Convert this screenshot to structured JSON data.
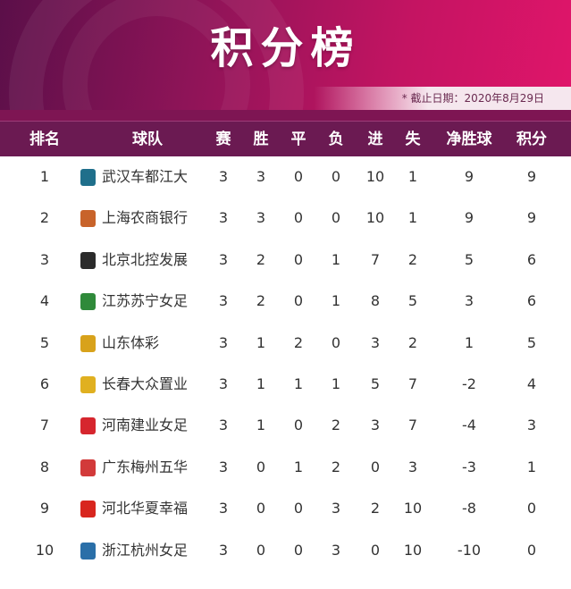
{
  "title": "积分榜",
  "date_note": "* 截止日期：2020年8月29日",
  "colors": {
    "banner_dark": "#5b0f49",
    "banner_bright": "#e0156a",
    "header_bg": "#6b1a52"
  },
  "headers": {
    "rank": "排名",
    "team": "球队",
    "played": "赛",
    "won": "胜",
    "drawn": "平",
    "lost": "负",
    "goals_for": "进",
    "goals_against": "失",
    "goal_diff": "净胜球",
    "points": "积分"
  },
  "rows": [
    {
      "rank": "1",
      "team": "武汉车都江大",
      "badge": "wuhan-badge-icon",
      "badge_color": "#1f6f8b",
      "played": "3",
      "won": "3",
      "drawn": "0",
      "lost": "0",
      "goals_for": "10",
      "goals_against": "1",
      "goal_diff": "9",
      "points": "9"
    },
    {
      "rank": "2",
      "team": "上海农商银行",
      "badge": "shanghai-badge-icon",
      "badge_color": "#c8632a",
      "played": "3",
      "won": "3",
      "drawn": "0",
      "lost": "0",
      "goals_for": "10",
      "goals_against": "1",
      "goal_diff": "9",
      "points": "9"
    },
    {
      "rank": "3",
      "team": "北京北控发展",
      "badge": "beijing-badge-icon",
      "badge_color": "#2b2b2b",
      "played": "3",
      "won": "2",
      "drawn": "0",
      "lost": "1",
      "goals_for": "7",
      "goals_against": "2",
      "goal_diff": "5",
      "points": "6"
    },
    {
      "rank": "4",
      "team": "江苏苏宁女足",
      "badge": "jiangsu-badge-icon",
      "badge_color": "#2f8a3a",
      "played": "3",
      "won": "2",
      "drawn": "0",
      "lost": "1",
      "goals_for": "8",
      "goals_against": "5",
      "goal_diff": "3",
      "points": "6"
    },
    {
      "rank": "5",
      "team": "山东体彩",
      "badge": "shandong-badge-icon",
      "badge_color": "#d8a21b",
      "played": "3",
      "won": "1",
      "drawn": "2",
      "lost": "0",
      "goals_for": "3",
      "goals_against": "2",
      "goal_diff": "1",
      "points": "5"
    },
    {
      "rank": "6",
      "team": "长春大众置业",
      "badge": "changchun-badge-icon",
      "badge_color": "#e0b020",
      "played": "3",
      "won": "1",
      "drawn": "1",
      "lost": "1",
      "goals_for": "5",
      "goals_against": "7",
      "goal_diff": "-2",
      "points": "4"
    },
    {
      "rank": "7",
      "team": "河南建业女足",
      "badge": "henan-badge-icon",
      "badge_color": "#d6262e",
      "played": "3",
      "won": "1",
      "drawn": "0",
      "lost": "2",
      "goals_for": "3",
      "goals_against": "7",
      "goal_diff": "-4",
      "points": "3"
    },
    {
      "rank": "8",
      "team": "广东梅州五华",
      "badge": "guangdong-badge-icon",
      "badge_color": "#d23a3a",
      "played": "3",
      "won": "0",
      "drawn": "1",
      "lost": "2",
      "goals_for": "0",
      "goals_against": "3",
      "goal_diff": "-3",
      "points": "1"
    },
    {
      "rank": "9",
      "team": "河北华夏幸福",
      "badge": "hebei-badge-icon",
      "badge_color": "#d8261e",
      "played": "3",
      "won": "0",
      "drawn": "0",
      "lost": "3",
      "goals_for": "2",
      "goals_against": "10",
      "goal_diff": "-8",
      "points": "0"
    },
    {
      "rank": "10",
      "team": "浙江杭州女足",
      "badge": "zhejiang-badge-icon",
      "badge_color": "#2a6fa8",
      "played": "3",
      "won": "0",
      "drawn": "0",
      "lost": "3",
      "goals_for": "0",
      "goals_against": "10",
      "goal_diff": "-10",
      "points": "0"
    }
  ]
}
